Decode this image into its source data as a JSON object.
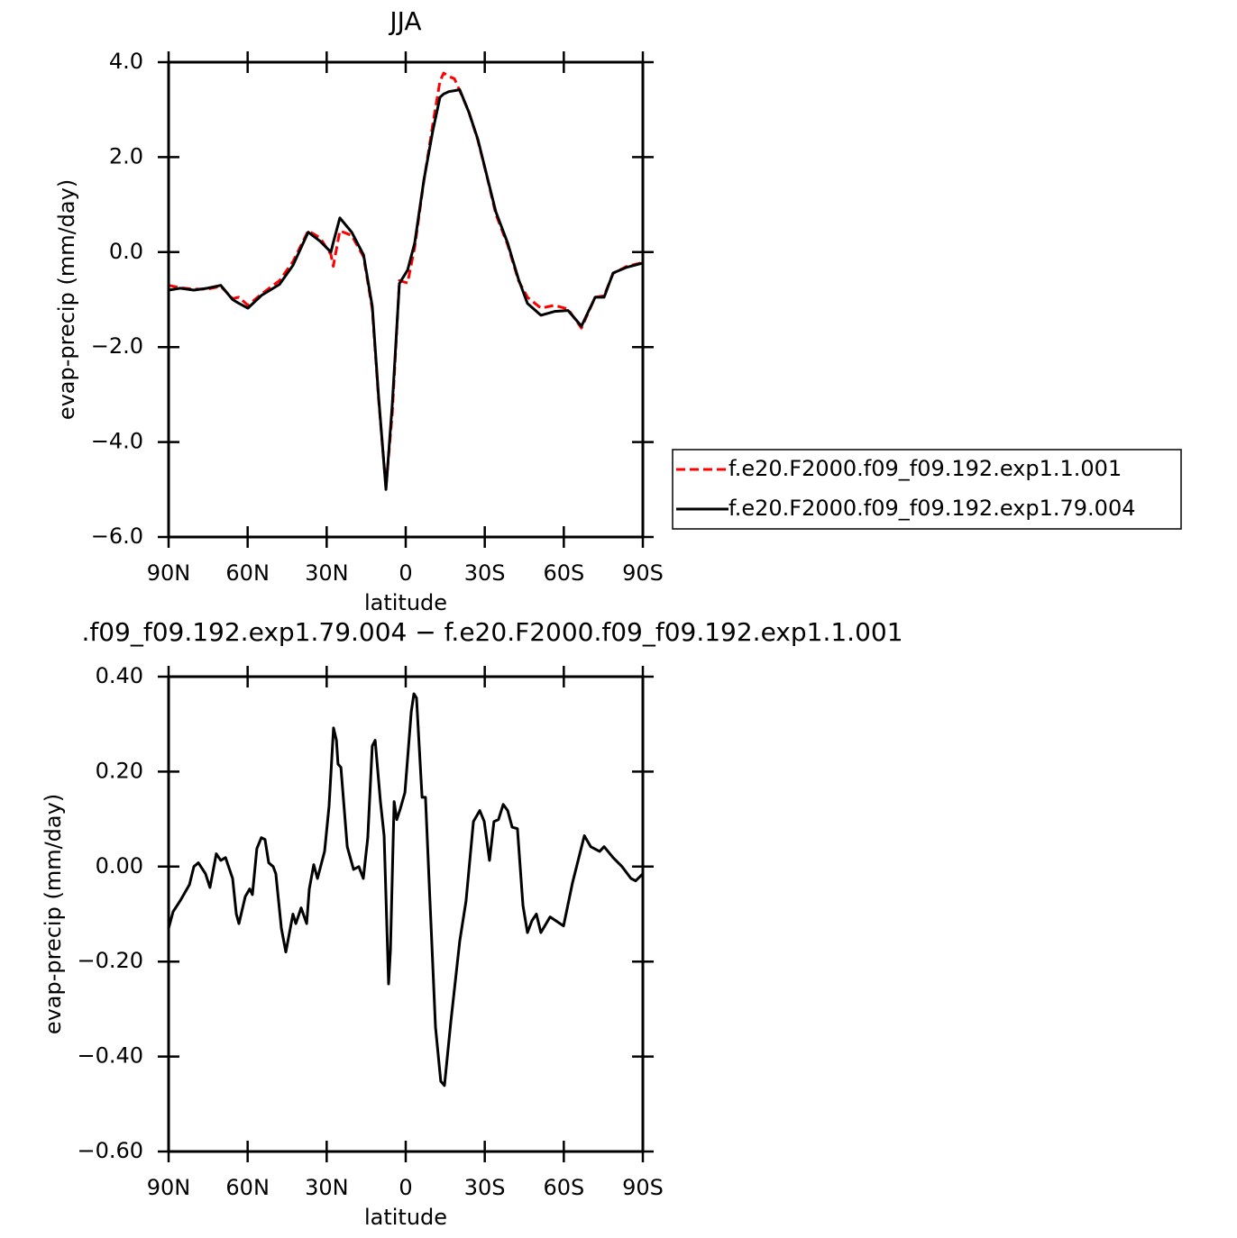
{
  "chart_data": [
    {
      "type": "line",
      "title": "JJA",
      "xlabel": "latitude",
      "ylabel": "evap-precip (mm/day)",
      "x": [
        90,
        85.6,
        80.4,
        75.3,
        70.2,
        65.7,
        63.3,
        59.9,
        54.7,
        47.9,
        42.8,
        37,
        32.5,
        28.4,
        27.5,
        25,
        20.5,
        16,
        12.7,
        10.3,
        7.5,
        5.1,
        2.4,
        -0.7,
        -3.4,
        -6.9,
        -10.3,
        -13,
        -14.4,
        -16.4,
        -18.5,
        -20.5,
        -24,
        -27.4,
        -30.8,
        -34.2,
        -38.7,
        -42.8,
        -46.2,
        -51.3,
        -56.5,
        -61.6,
        -66.7,
        -71.9,
        -75.3,
        -78.7,
        -83.9,
        -90
      ],
      "series": [
        {
          "name": "f.e20.F2000.f09_f09.192.exp1.1.001",
          "color": "#ff0000",
          "dash": true,
          "values": [
            -0.7,
            -0.75,
            -0.78,
            -0.78,
            -0.72,
            -0.98,
            -0.95,
            -1.12,
            -0.88,
            -0.6,
            -0.2,
            0.45,
            0.3,
            -0.05,
            -0.3,
            0.45,
            0.35,
            -0.1,
            -1.2,
            -3.1,
            -4.95,
            -3.4,
            -0.6,
            -0.65,
            0.1,
            1.5,
            2.7,
            3.6,
            3.77,
            3.7,
            3.65,
            3.4,
            2.95,
            2.35,
            1.6,
            0.8,
            0.15,
            -0.6,
            -0.95,
            -1.18,
            -1.12,
            -1.2,
            -1.6,
            -0.95,
            -0.92,
            -0.45,
            -0.3,
            -0.22
          ]
        },
        {
          "name": "f.e20.F2000.f09_f09.192.exp1.79.004",
          "color": "#000000",
          "dash": false,
          "values": [
            -0.8,
            -0.76,
            -0.8,
            -0.76,
            -0.7,
            -1.0,
            -1.08,
            -1.18,
            -0.91,
            -0.68,
            -0.28,
            0.42,
            0.23,
            0.0,
            0.2,
            0.72,
            0.42,
            -0.06,
            -1.14,
            -3.04,
            -5.0,
            -3.2,
            -0.66,
            -0.38,
            0.19,
            1.52,
            2.56,
            3.26,
            3.33,
            3.38,
            3.4,
            3.42,
            2.94,
            2.37,
            1.61,
            0.85,
            0.19,
            -0.57,
            -1.08,
            -1.33,
            -1.25,
            -1.23,
            -1.56,
            -0.95,
            -0.95,
            -0.44,
            -0.32,
            -0.23
          ]
        }
      ],
      "xlim": [
        90,
        -90
      ],
      "xticks": [
        {
          "value": 90,
          "label": "90N"
        },
        {
          "value": 60,
          "label": "60N"
        },
        {
          "value": 30,
          "label": "30N"
        },
        0,
        {
          "value": -30,
          "label": "30S"
        },
        {
          "value": -60,
          "label": "60S"
        },
        {
          "value": -90,
          "label": "90S"
        }
      ],
      "ylim": [
        -6,
        4
      ],
      "yticks": [
        {
          "value": -6,
          "label": "−6.0"
        },
        {
          "value": -4,
          "label": "−4.0"
        },
        {
          "value": -2,
          "label": "−2.0"
        },
        {
          "value": 0,
          "label": "0.0"
        },
        {
          "value": 2,
          "label": "2.0"
        },
        {
          "value": 4,
          "label": "4.0"
        }
      ],
      "legend": "right"
    },
    {
      "type": "line",
      "title": ".f09_f09.192.exp1.79.004 − f.e20.F2000.f09_f09.192.exp1.1.001",
      "xlabel": "latitude",
      "ylabel": "evap-precip (mm/day)",
      "x": [
        90,
        88.3,
        85.6,
        82.1,
        80.4,
        78.7,
        76.0,
        74.3,
        71.9,
        70.2,
        68.4,
        65.7,
        64.3,
        63.3,
        60.9,
        59.2,
        58.2,
        56.5,
        54.8,
        53.4,
        52.0,
        50.3,
        49.3,
        47.2,
        45.5,
        42.8,
        41.7,
        39.7,
        37.6,
        36.6,
        34.9,
        33.5,
        30.8,
        29.1,
        27.4,
        26.3,
        25.7,
        24.6,
        22.2,
        19.8,
        17.8,
        16.1,
        14.4,
        12.7,
        11.6,
        9.6,
        8.2,
        6.5,
        5.8,
        4.4,
        3.4,
        2.1,
        0.3,
        -2.1,
        -3.1,
        -4.1,
        -6.2,
        -7.5,
        -9.2,
        -11.3,
        -13.3,
        -14.7,
        -17.1,
        -20.5,
        -22.9,
        -25.7,
        -28.1,
        -29.8,
        -31.8,
        -33.5,
        -35.2,
        -37.0,
        -38.7,
        -40.4,
        -42.4,
        -44.5,
        -46.2,
        -47.9,
        -49.6,
        -51.3,
        -54.8,
        -59.9,
        -63.3,
        -67.8,
        -70.2,
        -73.6,
        -75.3,
        -78.7,
        -82.1,
        -85.5,
        -87.3,
        -90
      ],
      "values": [
        -0.13,
        -0.095,
        -0.072,
        -0.038,
        0.0,
        0.008,
        -0.015,
        -0.044,
        0.027,
        0.013,
        0.019,
        -0.025,
        -0.1,
        -0.12,
        -0.063,
        -0.047,
        -0.059,
        0.038,
        0.061,
        0.057,
        0.008,
        0.0,
        -0.015,
        -0.13,
        -0.18,
        -0.1,
        -0.12,
        -0.087,
        -0.12,
        -0.047,
        0.004,
        -0.025,
        0.032,
        0.127,
        0.292,
        0.266,
        0.216,
        0.209,
        0.042,
        -0.006,
        0.0,
        -0.025,
        0.061,
        0.254,
        0.266,
        0.137,
        0.065,
        -0.247,
        -0.176,
        0.137,
        0.099,
        0.121,
        0.156,
        0.326,
        0.364,
        0.355,
        0.146,
        0.146,
        -0.072,
        -0.338,
        -0.452,
        -0.461,
        -0.328,
        -0.157,
        -0.072,
        0.095,
        0.118,
        0.095,
        0.013,
        0.095,
        0.099,
        0.131,
        0.118,
        0.083,
        0.08,
        -0.082,
        -0.139,
        -0.114,
        -0.1,
        -0.139,
        -0.106,
        -0.125,
        -0.034,
        0.065,
        0.042,
        0.032,
        0.042,
        0.019,
        0.0,
        -0.025,
        -0.03,
        -0.015
      ],
      "color": "#000000",
      "xlim": [
        90,
        -90
      ],
      "xticks": [
        {
          "value": 90,
          "label": "90N"
        },
        {
          "value": 60,
          "label": "60N"
        },
        {
          "value": 30,
          "label": "30N"
        },
        0,
        {
          "value": -30,
          "label": "30S"
        },
        {
          "value": -60,
          "label": "60S"
        },
        {
          "value": -90,
          "label": "90S"
        }
      ],
      "ylim": [
        -0.6,
        0.4
      ],
      "yticks": [
        {
          "value": -0.6,
          "label": "−0.60"
        },
        {
          "value": -0.4,
          "label": "−0.40"
        },
        {
          "value": -0.2,
          "label": "−0.20"
        },
        {
          "value": 0,
          "label": "0.00"
        },
        {
          "value": 0.2,
          "label": "0.20"
        },
        {
          "value": 0.4,
          "label": "0.40"
        }
      ]
    }
  ]
}
